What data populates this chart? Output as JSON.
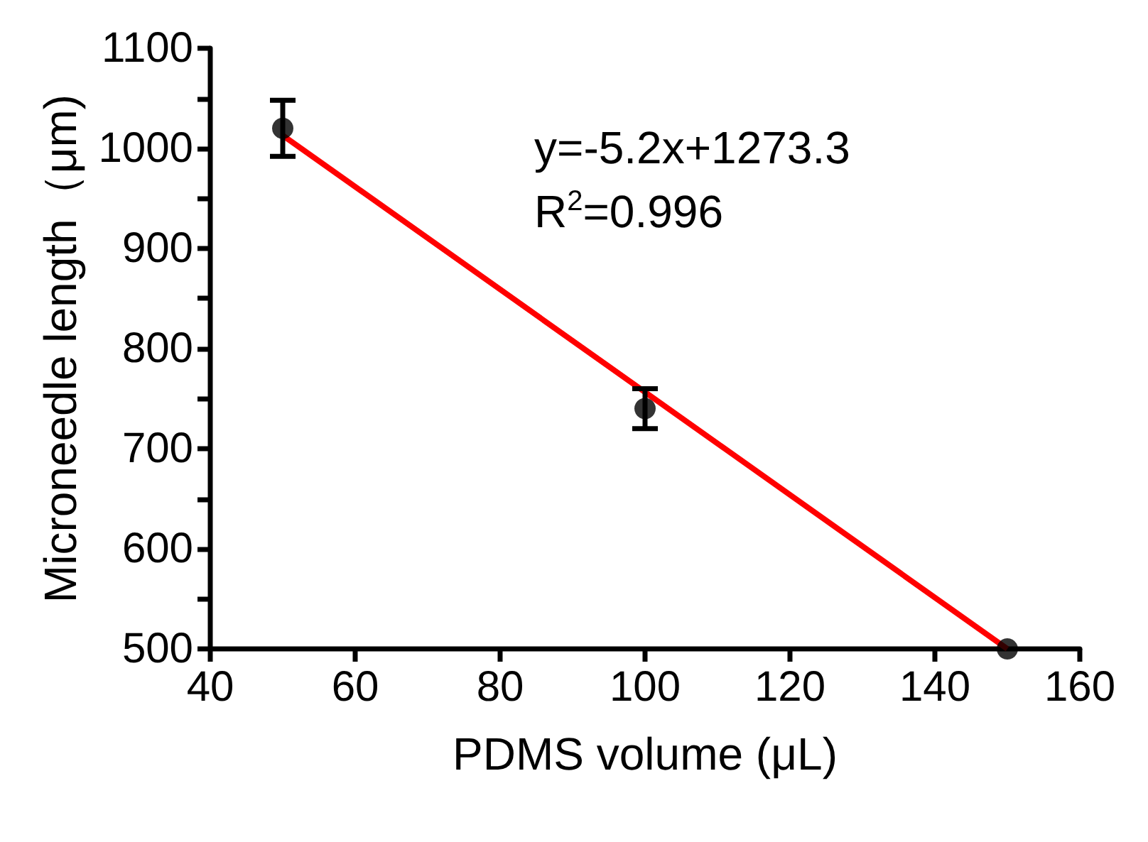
{
  "chart_data": {
    "type": "scatter",
    "xlabel": "PDMS volume (μL)",
    "ylabel": "Microneedle length（μm)",
    "x": [
      50,
      100,
      150
    ],
    "series": [
      {
        "color": "#000000",
        "values": [
          1020,
          740,
          500
        ],
        "errors": [
          28,
          20,
          null
        ],
        "marker": "circle"
      },
      {
        "type": "line",
        "color": "#ff0000",
        "x": [
          50,
          150
        ],
        "values": [
          1013,
          500
        ],
        "marker": "none",
        "line_style": "solid"
      }
    ],
    "annotations": [
      "y=-5.2x+1273.3",
      "R$^{2}$=0.996"
    ],
    "xlim": [
      40,
      160
    ],
    "xticks": [
      40,
      60,
      80,
      100,
      120,
      140,
      160
    ],
    "ylim": [
      500,
      1100
    ],
    "yticks": [
      500,
      {
        "value": 550,
        "label": null
      },
      600,
      {
        "value": 650,
        "label": null
      },
      700,
      {
        "value": 750,
        "label": null
      },
      800,
      {
        "value": 850,
        "label": null
      },
      900,
      {
        "value": 950,
        "label": null
      },
      1000,
      {
        "value": 1050,
        "label": null
      },
      1100
    ],
    "grid": false
  }
}
